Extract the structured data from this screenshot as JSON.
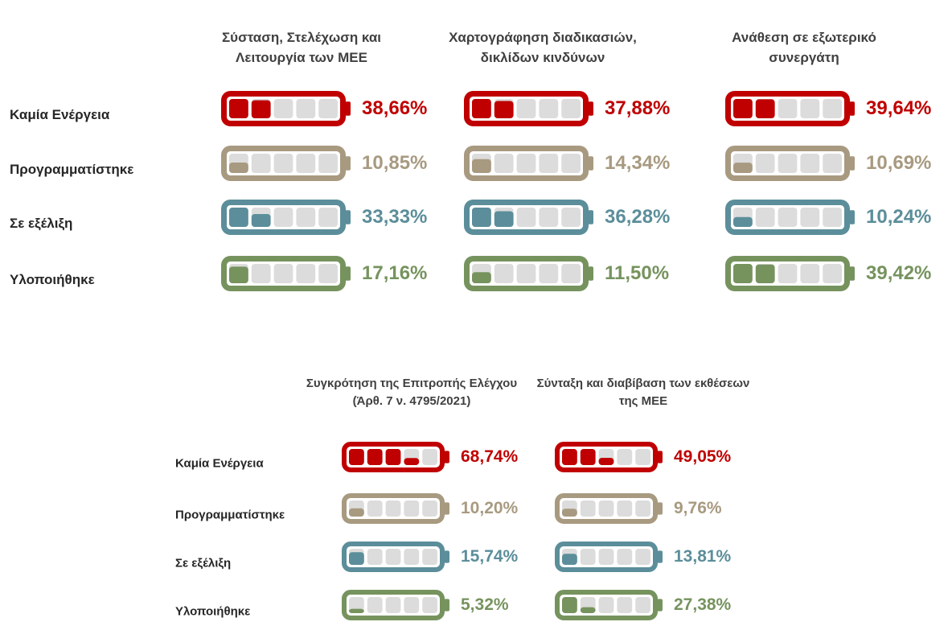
{
  "chart_data": [
    {
      "type": "battery",
      "categories": [
        "Καμία Ενέργεια",
        "Προγραμματίστηκε",
        "Σε εξέλιξη",
        "Υλοποιήθηκε"
      ],
      "colors": [
        "#c00000",
        "#a89a80",
        "#5b8e9a",
        "#76935e"
      ],
      "series": [
        {
          "name": "Σύσταση, Στελέχωση και Λειτουργία των ΜΕΕ",
          "values": [
            38.66,
            10.85,
            33.33,
            17.16
          ],
          "value_labels": [
            "38,66%",
            "10,85%",
            "33,33%",
            "17,16%"
          ]
        },
        {
          "name": "Χαρτογράφηση διαδικασιών, δικλίδων κινδύνων",
          "values": [
            37.88,
            14.34,
            36.28,
            11.5
          ],
          "value_labels": [
            "37,88%",
            "14,34%",
            "36,28%",
            "11,50%"
          ]
        },
        {
          "name": "Ανάθεση σε εξωτερικό συνεργάτη",
          "values": [
            39.64,
            10.69,
            10.24,
            39.42
          ],
          "value_labels": [
            "39,64%",
            "10,69%",
            "10,24%",
            "39,42%"
          ]
        }
      ]
    },
    {
      "type": "battery",
      "categories": [
        "Καμία Ενέργεια",
        "Προγραμματίστηκε",
        "Σε εξέλιξη",
        "Υλοποιήθηκε"
      ],
      "colors": [
        "#c00000",
        "#a89a80",
        "#5b8e9a",
        "#76935e"
      ],
      "series": [
        {
          "name": "Συγκρότηση της Επιτροπής Ελέγχου (Άρθ. 7 ν. 4795/2021)",
          "values": [
            68.74,
            10.2,
            15.74,
            5.32
          ],
          "value_labels": [
            "68,74%",
            "10,20%",
            "15,74%",
            "5,32%"
          ]
        },
        {
          "name": "Σύνταξη και διαβίβαση των εκθέσεων της ΜΕΕ",
          "values": [
            49.05,
            9.76,
            13.81,
            27.38
          ],
          "value_labels": [
            "49,05%",
            "9,76%",
            "13,81%",
            "27,38%"
          ]
        }
      ]
    }
  ]
}
